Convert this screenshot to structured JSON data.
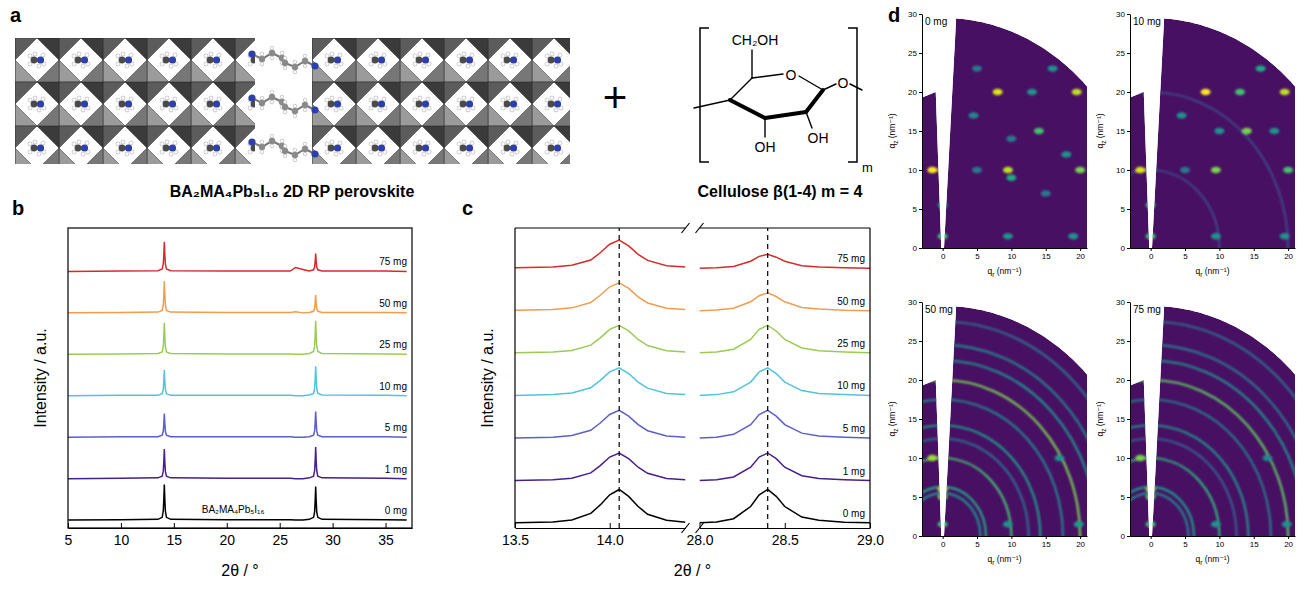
{
  "diagram": {
    "panel_label": "a",
    "perovskite_label": "BA₂MA₄Pb₅I₁₆ 2D RP perovskite",
    "operator": "+",
    "cellulose_label": "Cellulose β(1-4) m = 4",
    "cellulose_groups": {
      "hydroxymethyl": "CH₂OH",
      "ring_oxygen": "O",
      "hydroxyl_a": "OH",
      "hydroxyl_b": "OH",
      "glycosidic_oxygen": "O",
      "repeat": "m"
    }
  },
  "chart_data": [
    {
      "type": "line",
      "panel_label": "b",
      "xlabel": "2θ / °",
      "ylabel": "Intensity / a.u.",
      "annotation": "BA₂MA₄Pb₅I₁₆",
      "x": [
        5,
        10,
        13.5,
        13.9,
        14.0,
        14.05,
        14.1,
        14.15,
        14.2,
        14.3,
        14.7,
        20,
        26,
        26.5,
        27.2,
        27.8,
        28.2,
        28.3,
        28.35,
        28.4,
        28.45,
        28.5,
        28.6,
        29,
        35,
        37
      ],
      "xlim": [
        5,
        37.5
      ],
      "xticks": [
        5,
        10,
        15,
        20,
        25,
        30,
        35
      ],
      "ylim": [
        0,
        7.6
      ],
      "tick_labels": "x",
      "series": [
        {
          "name": "0 mg",
          "color": "#000000",
          "values": [
            0.2,
            0.21,
            0.22,
            0.27,
            0.43,
            0.7,
            1.1,
            0.7,
            0.43,
            0.27,
            0.22,
            0.21,
            0.21,
            0.2,
            0.2,
            0.22,
            0.27,
            0.41,
            0.67,
            1.05,
            0.67,
            0.41,
            0.27,
            0.22,
            0.21,
            0.2
          ]
        },
        {
          "name": "1 mg",
          "color": "#46208c",
          "values": [
            1.25,
            1.26,
            1.27,
            1.31,
            1.44,
            1.66,
            2.0,
            1.66,
            1.44,
            1.31,
            1.27,
            1.26,
            1.26,
            1.25,
            1.25,
            1.27,
            1.31,
            1.45,
            1.69,
            2.05,
            1.69,
            1.45,
            1.31,
            1.27,
            1.26,
            1.25
          ]
        },
        {
          "name": "5 mg",
          "color": "#5b5fc7",
          "values": [
            2.3,
            2.31,
            2.31,
            2.35,
            2.45,
            2.63,
            2.9,
            2.63,
            2.45,
            2.35,
            2.31,
            2.31,
            2.31,
            2.3,
            2.3,
            2.31,
            2.35,
            2.46,
            2.66,
            2.95,
            2.66,
            2.46,
            2.35,
            2.31,
            2.31,
            2.3
          ]
        },
        {
          "name": "10 mg",
          "color": "#4fc4dc",
          "values": [
            3.35,
            3.36,
            3.36,
            3.4,
            3.51,
            3.71,
            4.0,
            3.71,
            3.51,
            3.4,
            3.36,
            3.36,
            3.36,
            3.35,
            3.35,
            3.37,
            3.41,
            3.54,
            3.76,
            4.1,
            3.76,
            3.54,
            3.41,
            3.37,
            3.36,
            3.35
          ]
        },
        {
          "name": "25 mg",
          "color": "#9bcb55",
          "values": [
            4.4,
            4.41,
            4.42,
            4.46,
            4.6,
            4.84,
            5.2,
            4.84,
            4.6,
            4.46,
            4.42,
            4.41,
            4.41,
            4.4,
            4.4,
            4.42,
            4.47,
            4.61,
            4.87,
            5.25,
            4.87,
            4.61,
            4.47,
            4.42,
            4.41,
            4.4
          ]
        },
        {
          "name": "50 mg",
          "color": "#f39c4f",
          "values": [
            5.45,
            5.46,
            5.47,
            5.51,
            5.65,
            5.89,
            6.25,
            5.89,
            5.65,
            5.51,
            5.47,
            5.46,
            5.46,
            5.48,
            5.45,
            5.46,
            5.49,
            5.56,
            5.7,
            5.9,
            5.7,
            5.56,
            5.49,
            5.46,
            5.46,
            5.45
          ]
        },
        {
          "name": "75 mg",
          "color": "#d42b2b",
          "values": [
            6.5,
            6.51,
            6.52,
            6.56,
            6.69,
            6.91,
            7.25,
            6.91,
            6.69,
            6.56,
            6.52,
            6.51,
            6.51,
            6.6,
            6.55,
            6.51,
            6.54,
            6.61,
            6.75,
            6.95,
            6.75,
            6.61,
            6.54,
            6.51,
            6.51,
            6.5
          ]
        }
      ]
    },
    {
      "type": "line",
      "panel_label": "c",
      "xlabel": "2θ / °",
      "ylabel": "Intensity / a.u.",
      "x": [
        13.5,
        13.7,
        13.8,
        13.9,
        13.95,
        14.0,
        14.05,
        14.1,
        14.15,
        14.2,
        14.3,
        14.4,
        28.0,
        28.1,
        28.2,
        28.3,
        28.35,
        28.4,
        28.45,
        28.5,
        28.6,
        28.7,
        28.85,
        29.0
      ],
      "segments": [
        {
          "xlim": [
            13.5,
            14.4
          ],
          "xticks": [
            13.5,
            {
              "value": 14,
              "label": "14.0"
            }
          ]
        },
        {
          "xlim": [
            28,
            29
          ],
          "xticks": [
            {
              "value": 28,
              "label": "28.0"
            },
            28.5,
            {
              "value": 29,
              "label": "29.0"
            }
          ]
        }
      ],
      "vlines": [
        14.05,
        28.4
      ],
      "ylim": [
        0,
        7.4
      ],
      "tick_labels": "x",
      "series": [
        {
          "name": "0 mg",
          "color": "#000000",
          "values": [
            0.13,
            0.15,
            0.2,
            0.36,
            0.57,
            0.82,
            0.95,
            0.78,
            0.53,
            0.34,
            0.19,
            0.14,
            0.13,
            0.15,
            0.23,
            0.53,
            0.82,
            0.95,
            0.78,
            0.53,
            0.27,
            0.19,
            0.14,
            0.13
          ]
        },
        {
          "name": "1 mg",
          "color": "#46208c",
          "values": [
            1.17,
            1.19,
            1.23,
            1.36,
            1.54,
            1.75,
            1.85,
            1.71,
            1.5,
            1.35,
            1.22,
            1.19,
            1.17,
            1.19,
            1.26,
            1.5,
            1.75,
            1.85,
            1.71,
            1.5,
            1.29,
            1.22,
            1.19,
            1.17
          ]
        },
        {
          "name": "5 mg",
          "color": "#5b5fc7",
          "values": [
            2.22,
            2.24,
            2.28,
            2.41,
            2.59,
            2.8,
            2.9,
            2.76,
            2.55,
            2.4,
            2.27,
            2.24,
            2.22,
            2.24,
            2.31,
            2.55,
            2.8,
            2.9,
            2.76,
            2.55,
            2.34,
            2.27,
            2.24,
            2.22
          ]
        },
        {
          "name": "10 mg",
          "color": "#4fc4dc",
          "values": [
            3.27,
            3.29,
            3.33,
            3.46,
            3.64,
            3.85,
            3.95,
            3.81,
            3.6,
            3.45,
            3.32,
            3.29,
            3.27,
            3.29,
            3.36,
            3.6,
            3.85,
            3.95,
            3.81,
            3.6,
            3.39,
            3.32,
            3.29,
            3.27
          ]
        },
        {
          "name": "25 mg",
          "color": "#9bcb55",
          "values": [
            4.32,
            4.34,
            4.38,
            4.51,
            4.69,
            4.9,
            5.0,
            4.86,
            4.65,
            4.5,
            4.37,
            4.34,
            4.32,
            4.34,
            4.41,
            4.65,
            4.9,
            5.0,
            4.86,
            4.65,
            4.44,
            4.37,
            4.34,
            4.32
          ]
        },
        {
          "name": "50 mg",
          "color": "#f39c4f",
          "values": [
            5.37,
            5.39,
            5.43,
            5.56,
            5.74,
            5.95,
            6.05,
            5.91,
            5.7,
            5.55,
            5.42,
            5.39,
            5.36,
            5.38,
            5.42,
            5.58,
            5.73,
            5.8,
            5.71,
            5.58,
            5.44,
            5.4,
            5.37,
            5.36
          ]
        },
        {
          "name": "75 mg",
          "color": "#d42b2b",
          "values": [
            6.42,
            6.44,
            6.48,
            6.61,
            6.79,
            7.0,
            7.1,
            6.96,
            6.75,
            6.6,
            6.47,
            6.44,
            6.41,
            6.42,
            6.45,
            6.58,
            6.7,
            6.75,
            6.68,
            6.58,
            6.47,
            6.44,
            6.42,
            6.41
          ]
        }
      ]
    },
    {
      "type": "map",
      "panel_label": "d",
      "title": "0 mg",
      "xlabel": "qr (nm⁻¹)",
      "ylabel": "qz (nm⁻¹)",
      "xlim": [
        -3,
        21
      ],
      "ylim": [
        0,
        30
      ],
      "xticks": [
        0,
        5,
        10,
        15,
        20
      ],
      "yticks": [
        0,
        5,
        10,
        15,
        20,
        25,
        30
      ],
      "spots": [
        {
          "qr": -1.5,
          "qz": 10,
          "intensity": 1.0
        },
        {
          "qr": 0,
          "qz": 10,
          "intensity": 0.9
        },
        {
          "qr": 0,
          "qz": 5.5,
          "intensity": 0.55
        },
        {
          "qr": 0,
          "qz": 1.5,
          "intensity": 0.7
        },
        {
          "qr": 0,
          "qz": 15,
          "intensity": 0.45
        },
        {
          "qr": 5,
          "qz": 10,
          "intensity": 0.4
        },
        {
          "qr": 9.5,
          "qz": 10,
          "intensity": 0.9
        },
        {
          "qr": 10,
          "qz": 9,
          "intensity": 0.6
        },
        {
          "qr": 14,
          "qz": 15,
          "intensity": 0.7
        },
        {
          "qr": 13,
          "qz": 20,
          "intensity": 0.5
        },
        {
          "qr": 8,
          "qz": 20,
          "intensity": 0.95
        },
        {
          "qr": 19.5,
          "qz": 20,
          "intensity": 0.9
        },
        {
          "qr": 20,
          "qz": 10,
          "intensity": 0.8
        },
        {
          "qr": 10,
          "qz": 14,
          "intensity": 0.4
        },
        {
          "qr": 4.5,
          "qz": 17,
          "intensity": 0.45
        },
        {
          "qr": 19,
          "qz": 1.5,
          "intensity": 0.5
        },
        {
          "qr": 9.5,
          "qz": 1.5,
          "intensity": 0.5
        },
        {
          "qr": 15,
          "qz": 7,
          "intensity": 0.4
        },
        {
          "qr": 16,
          "qz": 23,
          "intensity": 0.5
        },
        {
          "qr": 5,
          "qz": 23,
          "intensity": 0.4
        },
        {
          "qr": 18,
          "qz": 12,
          "intensity": 0.5
        }
      ]
    },
    {
      "type": "map",
      "title": "10 mg",
      "xlabel": "qr (nm⁻¹)",
      "ylabel": "qz (nm⁻¹)",
      "xlim": [
        -3,
        21
      ],
      "ylim": [
        0,
        30
      ],
      "xticks": [
        0,
        5,
        10,
        15,
        20
      ],
      "yticks": [
        0,
        5,
        10,
        15,
        20,
        25,
        30
      ],
      "spots": [
        {
          "qr": -1.5,
          "qz": 10,
          "intensity": 0.95
        },
        {
          "qr": 0,
          "qz": 10,
          "intensity": 0.8
        },
        {
          "qr": 0,
          "qz": 5.5,
          "intensity": 0.7
        },
        {
          "qr": 0,
          "qz": 1.5,
          "intensity": 0.7
        },
        {
          "qr": 9.5,
          "qz": 10,
          "intensity": 0.8
        },
        {
          "qr": 14,
          "qz": 15,
          "intensity": 0.8
        },
        {
          "qr": 8,
          "qz": 20,
          "intensity": 1.0
        },
        {
          "qr": 13,
          "qz": 20,
          "intensity": 0.7
        },
        {
          "qr": 19.5,
          "qz": 20,
          "intensity": 0.9
        },
        {
          "qr": 20,
          "qz": 10,
          "intensity": 0.7
        },
        {
          "qr": 5,
          "qz": 10,
          "intensity": 0.4
        },
        {
          "qr": 4.5,
          "qz": 17,
          "intensity": 0.5
        },
        {
          "qr": 16,
          "qz": 23,
          "intensity": 0.6
        },
        {
          "qr": 9.5,
          "qz": 1.5,
          "intensity": 0.5
        },
        {
          "qr": 19.5,
          "qz": 1.5,
          "intensity": 0.5
        },
        {
          "qr": 18,
          "qz": 15,
          "intensity": 0.5
        },
        {
          "qr": 10,
          "qz": 15,
          "intensity": 0.5
        }
      ],
      "rings": [
        {
          "q": 10,
          "intensity": 0.2
        },
        {
          "q": 20,
          "intensity": 0.2
        }
      ]
    },
    {
      "type": "map",
      "title": "50 mg",
      "xlabel": "qr (nm⁻¹)",
      "ylabel": "qz (nm⁻¹)",
      "xlim": [
        -3,
        21
      ],
      "ylim": [
        0,
        30
      ],
      "xticks": [
        0,
        5,
        10,
        15,
        20
      ],
      "yticks": [
        0,
        5,
        10,
        15,
        20,
        25,
        30
      ],
      "spots": [
        {
          "qr": -1.5,
          "qz": 10,
          "intensity": 0.85
        },
        {
          "qr": 0,
          "qz": 10,
          "intensity": 0.8
        },
        {
          "qr": 0,
          "qz": 6,
          "intensity": 0.9
        },
        {
          "qr": 0,
          "qz": 5,
          "intensity": 0.8
        },
        {
          "qr": 0,
          "qz": 1.5,
          "intensity": 0.7
        },
        {
          "qr": 9.5,
          "qz": 1.5,
          "intensity": 0.5
        },
        {
          "qr": 19.8,
          "qz": 1.5,
          "intensity": 0.55
        },
        {
          "qr": 17,
          "qz": 10,
          "intensity": 0.5
        }
      ],
      "rings": [
        {
          "q": 5.5,
          "intensity": 0.5
        },
        {
          "q": 6.3,
          "intensity": 0.6
        },
        {
          "q": 10,
          "intensity": 0.7
        },
        {
          "q": 12.5,
          "intensity": 0.35
        },
        {
          "q": 14.2,
          "intensity": 0.55
        },
        {
          "q": 17.5,
          "intensity": 0.45
        },
        {
          "q": 20,
          "intensity": 0.8
        },
        {
          "q": 22.5,
          "intensity": 0.5
        },
        {
          "q": 24.5,
          "intensity": 0.45
        },
        {
          "q": 27.5,
          "intensity": 0.35
        }
      ]
    },
    {
      "type": "map",
      "title": "75 mg",
      "xlabel": "qr (nm⁻¹)",
      "ylabel": "qz (nm⁻¹)",
      "xlim": [
        -3,
        21
      ],
      "ylim": [
        0,
        30
      ],
      "xticks": [
        0,
        5,
        10,
        15,
        20
      ],
      "yticks": [
        0,
        5,
        10,
        15,
        20,
        25,
        30
      ],
      "spots": [
        {
          "qr": -1.5,
          "qz": 10,
          "intensity": 0.8
        },
        {
          "qr": 0,
          "qz": 10,
          "intensity": 0.75
        },
        {
          "qr": 0,
          "qz": 6,
          "intensity": 0.85
        },
        {
          "qr": 0,
          "qz": 5,
          "intensity": 0.75
        },
        {
          "qr": 0,
          "qz": 1.5,
          "intensity": 0.7
        },
        {
          "qr": 9.5,
          "qz": 1.5,
          "intensity": 0.5
        },
        {
          "qr": 19.8,
          "qz": 1.5,
          "intensity": 0.5
        },
        {
          "qr": 17,
          "qz": 10,
          "intensity": 0.45
        }
      ],
      "rings": [
        {
          "q": 5.5,
          "intensity": 0.45
        },
        {
          "q": 6.3,
          "intensity": 0.55
        },
        {
          "q": 10,
          "intensity": 0.65
        },
        {
          "q": 12.5,
          "intensity": 0.3
        },
        {
          "q": 14.2,
          "intensity": 0.5
        },
        {
          "q": 17.5,
          "intensity": 0.4
        },
        {
          "q": 20,
          "intensity": 0.75
        },
        {
          "q": 22.5,
          "intensity": 0.5
        },
        {
          "q": 24.5,
          "intensity": 0.4
        },
        {
          "q": 27.5,
          "intensity": 0.35
        }
      ]
    }
  ]
}
